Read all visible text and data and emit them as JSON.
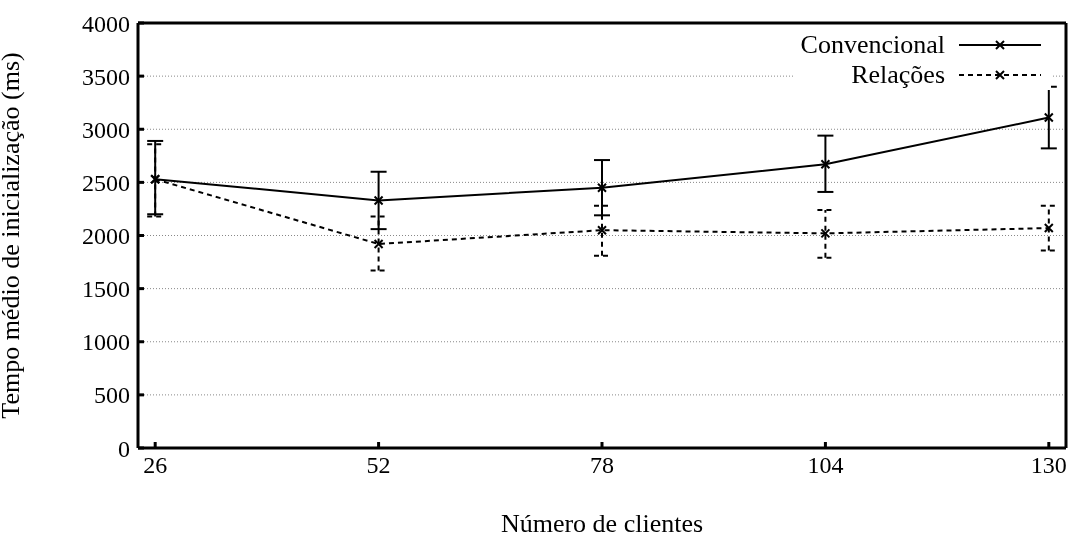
{
  "chart_data": {
    "type": "line",
    "xlabel": "Número de clientes",
    "ylabel": "Tempo médio de inicialização (ms)",
    "x": [
      26,
      52,
      78,
      104,
      130
    ],
    "xlim": [
      24,
      132
    ],
    "xticks": [
      26,
      52,
      78,
      104,
      130
    ],
    "ylim": [
      0,
      4000
    ],
    "yticks": [
      0,
      500,
      1000,
      1500,
      2000,
      2500,
      3000,
      3500,
      4000
    ],
    "grid": "y",
    "legend": "top right",
    "marker": "cross",
    "series": [
      {
        "name": "Convencional",
        "color": "#000000",
        "line_style": "solid",
        "values": [
          2530,
          2330,
          2450,
          2670,
          3110
        ],
        "errors": [
          [
            2200,
            2890
          ],
          [
            2060,
            2600
          ],
          [
            2190,
            2710
          ],
          [
            2410,
            2940
          ],
          [
            2820,
            3400
          ]
        ]
      },
      {
        "name": "Relações",
        "color": "#000000",
        "line_style": "dashed",
        "values": [
          2530,
          1920,
          2050,
          2020,
          2070
        ],
        "errors": [
          [
            2180,
            2860
          ],
          [
            1670,
            2180
          ],
          [
            1810,
            2280
          ],
          [
            1790,
            2240
          ],
          [
            1860,
            2280
          ]
        ]
      }
    ]
  }
}
